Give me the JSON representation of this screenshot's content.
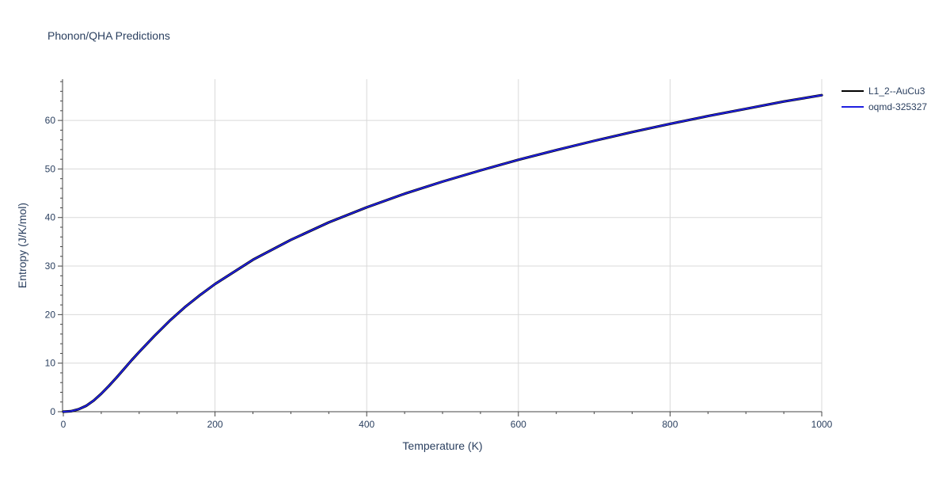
{
  "chart_data": {
    "type": "line",
    "title": "Phonon/QHA Predictions",
    "xlabel": "Temperature (K)",
    "ylabel": "Entropy (J/K/mol)",
    "xlim": [
      0,
      1000
    ],
    "ylim": [
      0,
      68.5
    ],
    "xticks": [
      0,
      200,
      400,
      600,
      800,
      1000
    ],
    "yticks": [
      0,
      10,
      20,
      30,
      40,
      50,
      60
    ],
    "grid": true,
    "legend_position": "top-right",
    "series": [
      {
        "name": "L1_2--AuCu3",
        "color": "#000000",
        "x": [
          0,
          10,
          20,
          30,
          40,
          50,
          60,
          70,
          80,
          90,
          100,
          120,
          140,
          160,
          180,
          200,
          250,
          300,
          350,
          400,
          450,
          500,
          550,
          600,
          650,
          700,
          750,
          800,
          850,
          900,
          950,
          1000
        ],
        "y": [
          0,
          0.1,
          0.5,
          1.2,
          2.3,
          3.7,
          5.3,
          7.0,
          8.8,
          10.6,
          12.3,
          15.6,
          18.7,
          21.5,
          24.0,
          26.3,
          31.3,
          35.4,
          39.0,
          42.1,
          44.9,
          47.4,
          49.7,
          51.9,
          53.9,
          55.8,
          57.6,
          59.3,
          60.9,
          62.4,
          63.9,
          65.2
        ]
      },
      {
        "name": "oqmd-325327",
        "color": "#1f1fe0",
        "x": [
          0,
          10,
          20,
          30,
          40,
          50,
          60,
          70,
          80,
          90,
          100,
          120,
          140,
          160,
          180,
          200,
          250,
          300,
          350,
          400,
          450,
          500,
          550,
          600,
          650,
          700,
          750,
          800,
          850,
          900,
          950,
          1000
        ],
        "y": [
          0,
          0.1,
          0.5,
          1.2,
          2.3,
          3.7,
          5.3,
          7.0,
          8.8,
          10.6,
          12.3,
          15.6,
          18.7,
          21.5,
          24.0,
          26.3,
          31.3,
          35.4,
          39.0,
          42.1,
          44.9,
          47.4,
          49.7,
          51.9,
          53.9,
          55.8,
          57.6,
          59.3,
          60.9,
          62.4,
          63.9,
          65.2
        ]
      }
    ]
  }
}
